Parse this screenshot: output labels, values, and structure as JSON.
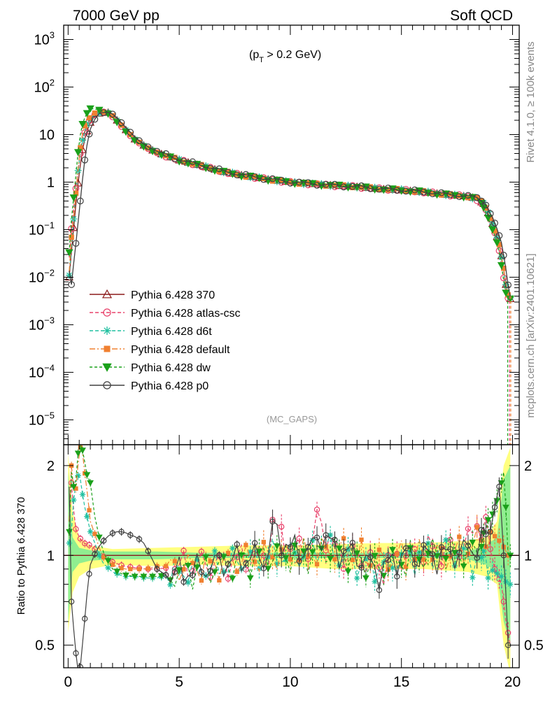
{
  "chart_data": {
    "type": "line",
    "title_left": "7000 GeV pp",
    "title_right": "Soft QCD",
    "cut_label_pre": "(p",
    "cut_label_sub": "T",
    "cut_label_post": " > 0.2 GeV)",
    "analysis_label": "(MC_GAPS)",
    "side_label_top": "Rivet 4.1.0, ≥ 100k events",
    "side_label_bottom": "mcplots.cern.ch [arXiv:2401.10621]",
    "ratio_ylabel": "Ratio to Pythia 6.428 370",
    "xlim": [
      -0.2,
      20.3
    ],
    "ylim_main": [
      3e-06,
      2000
    ],
    "ylim_ratio": [
      0.42,
      2.35
    ],
    "yscale_main": "log",
    "yscale_ratio": "log",
    "x_ticks": [
      "0",
      "5",
      "10",
      "15",
      "20"
    ],
    "x_tick_values": [
      0,
      5,
      10,
      15,
      20
    ],
    "main_ticks": [
      {
        "base": "10",
        "exp": "3",
        "value": 1000
      },
      {
        "base": "10",
        "exp": "2",
        "value": 100
      },
      {
        "base": "10",
        "exp": "",
        "value": 10
      },
      {
        "base": "1",
        "exp": "",
        "value": 1
      },
      {
        "base": "10",
        "exp": "−1",
        "value": 0.1
      },
      {
        "base": "10",
        "exp": "−2",
        "value": 0.01
      },
      {
        "base": "10",
        "exp": "−3",
        "value": 0.001
      },
      {
        "base": "10",
        "exp": "−4",
        "value": 0.0001
      },
      {
        "base": "10",
        "exp": "−5",
        "value": 1e-05
      }
    ],
    "ratio_ticks": [
      {
        "label": "2",
        "value": 2
      },
      {
        "label": "1",
        "value": 1
      },
      {
        "label": "0.5",
        "value": 0.5
      }
    ],
    "shape": {
      "x": [
        0.0,
        0.05,
        0.1,
        0.2,
        0.3,
        0.4,
        0.5,
        0.6,
        0.7,
        0.8,
        0.9,
        1.0,
        1.2,
        1.4,
        1.6,
        1.8,
        2.0,
        2.2,
        2.5,
        3.0,
        3.5,
        4.0,
        5.0,
        6.0,
        7.0,
        8.0,
        9.0,
        10.0,
        11.0,
        12.0,
        13.0,
        14.0,
        15.0,
        16.0,
        17.0,
        18.0,
        18.4,
        18.7,
        19.0,
        19.2,
        19.4,
        19.5,
        19.6,
        19.7,
        19.8,
        19.9,
        20.0
      ],
      "y": [
        0.008,
        0.01,
        0.02,
        0.06,
        0.2,
        0.6,
        1.5,
        3.5,
        6.5,
        10,
        14,
        18,
        24,
        28,
        30,
        29,
        25,
        20,
        14,
        8,
        5.5,
        4.2,
        2.9,
        2.2,
        1.65,
        1.35,
        1.15,
        1.0,
        0.92,
        0.85,
        0.8,
        0.72,
        0.68,
        0.62,
        0.55,
        0.5,
        0.45,
        0.35,
        0.18,
        0.1,
        0.05,
        0.028,
        0.015,
        0.007,
        0.004,
        0.0035,
        0.0035
      ]
    },
    "series": [
      {
        "name": "Pythia 6.428 370",
        "color": "#8b1a1a",
        "dash": "",
        "marker": "triangle-open",
        "shift": 0.0,
        "amp": 1.0,
        "ratio": {
          "x": [
            0.0,
            20.0
          ],
          "y": [
            1.0,
            1.0
          ]
        }
      },
      {
        "name": "Pythia 6.428 atlas-csc",
        "color": "#e8406a",
        "dash": "5,3",
        "marker": "circle-open",
        "shift": -0.05,
        "amp": 1.0,
        "ratio": {
          "x": [
            0.05,
            0.15,
            0.3,
            0.5,
            0.7,
            1.0,
            1.5,
            2.0,
            2.5,
            3.0,
            3.5,
            4.0,
            5.0,
            6.0,
            7.0,
            8.0,
            9.0,
            9.1,
            10.0,
            11.0,
            11.2,
            12.0,
            13.0,
            14.0,
            15.0,
            16.0,
            17.0,
            18.0,
            18.4,
            18.8,
            19.2,
            19.5,
            19.7,
            19.9
          ],
          "y": [
            1.3,
            1.75,
            1.25,
            1.15,
            1.1,
            1.08,
            1.0,
            0.95,
            0.92,
            0.91,
            0.9,
            0.9,
            0.92,
            0.93,
            0.95,
            0.98,
            1.0,
            1.3,
            1.05,
            1.05,
            1.35,
            1.05,
            1.0,
            0.9,
            1.0,
            1.05,
            1.05,
            1.1,
            1.3,
            1.2,
            0.9,
            0.8,
            0.6,
            0.5
          ]
        }
      },
      {
        "name": "Pythia 6.428 d6t",
        "color": "#20c0a0",
        "dash": "5,3",
        "marker": "star",
        "shift": 0.0,
        "amp": 1.0,
        "ratio": {
          "x": [
            0.05,
            0.15,
            0.3,
            0.5,
            0.7,
            1.0,
            1.5,
            2.0,
            2.5,
            3.0,
            3.5,
            4.0,
            5.0,
            6.0,
            7.0,
            8.0,
            9.0,
            10.0,
            11.0,
            11.5,
            12.0,
            13.0,
            14.0,
            15.0,
            16.0,
            17.0,
            18.0,
            18.5,
            19.0,
            19.5,
            19.8
          ],
          "y": [
            1.1,
            1.2,
            1.7,
            1.9,
            1.5,
            1.2,
            0.95,
            0.88,
            0.85,
            0.85,
            0.84,
            0.84,
            0.88,
            0.9,
            0.92,
            0.97,
            1.0,
            1.0,
            1.02,
            1.1,
            1.0,
            0.95,
            0.92,
            0.98,
            1.0,
            1.05,
            1.0,
            0.95,
            0.9,
            0.85,
            0.8
          ]
        }
      },
      {
        "name": "Pythia 6.428 default",
        "color": "#f08030",
        "dash": "8,3,2,3",
        "marker": "square",
        "shift": 0.0,
        "amp": 1.0,
        "ratio": {
          "x": [
            0.05,
            0.15,
            0.3,
            0.5,
            0.6,
            0.7,
            1.0,
            1.5,
            2.0,
            2.5,
            3.0,
            3.5,
            4.0,
            5.0,
            6.0,
            7.0,
            8.0,
            9.0,
            10.0,
            11.0,
            12.0,
            13.0,
            14.0,
            15.0,
            16.0,
            17.0,
            18.0,
            18.6,
            19.0,
            19.5,
            19.8
          ],
          "y": [
            1.3,
            2.0,
            1.5,
            2.2,
            2.4,
            2.0,
            1.3,
            1.0,
            0.93,
            0.9,
            0.9,
            0.9,
            0.92,
            0.92,
            0.92,
            0.95,
            0.97,
            1.0,
            1.0,
            1.02,
            1.05,
            1.0,
            0.95,
            1.0,
            1.0,
            1.0,
            1.05,
            1.15,
            1.2,
            1.1,
            1.0
          ]
        }
      },
      {
        "name": "Pythia 6.428 dw",
        "color": "#1aa01a",
        "dash": "4,3",
        "marker": "triangle-down",
        "shift": -0.08,
        "amp": 1.0,
        "ratio": {
          "x": [
            0.05,
            0.15,
            0.3,
            0.5,
            0.7,
            0.8,
            1.0,
            1.2,
            1.5,
            2.0,
            2.5,
            3.0,
            3.5,
            4.0,
            5.0,
            6.0,
            7.0,
            8.0,
            9.0,
            10.0,
            11.0,
            12.0,
            13.0,
            14.0,
            15.0,
            16.0,
            17.0,
            18.0,
            18.5,
            19.0,
            19.4,
            19.6,
            19.8
          ],
          "y": [
            1.2,
            1.9,
            1.6,
            2.4,
            2.2,
            1.9,
            1.75,
            1.35,
            1.05,
            0.9,
            0.86,
            0.85,
            0.85,
            0.85,
            0.87,
            0.9,
            0.92,
            0.97,
            1.0,
            1.0,
            1.0,
            1.05,
            0.98,
            0.9,
            0.95,
            1.0,
            1.05,
            1.0,
            1.1,
            1.3,
            1.6,
            1.9,
            1.0
          ]
        }
      },
      {
        "name": "Pythia 6.428 p0",
        "color": "#404040",
        "dash": "",
        "marker": "circle-open",
        "shift": 0.1,
        "amp": 1.0,
        "ratio": {
          "x": [
            0.05,
            0.15,
            0.3,
            0.5,
            0.7,
            1.0,
            1.3,
            1.6,
            1.9,
            2.2,
            2.5,
            2.8,
            3.1,
            3.4,
            3.7,
            4.0,
            4.5,
            5.0,
            6.0,
            7.0,
            8.0,
            9.0,
            9.1,
            10.0,
            11.0,
            11.3,
            12.0,
            13.0,
            14.0,
            15.0,
            16.0,
            17.0,
            18.0,
            18.6,
            19.0,
            19.4,
            19.6,
            19.8
          ],
          "y": [
            1.7,
            0.7,
            0.5,
            0.38,
            0.55,
            0.93,
            1.05,
            1.12,
            1.18,
            1.2,
            1.2,
            1.17,
            1.15,
            1.1,
            1.0,
            0.9,
            0.85,
            0.88,
            0.9,
            0.95,
            0.98,
            1.0,
            1.25,
            1.05,
            1.05,
            1.2,
            1.05,
            1.0,
            0.88,
            1.0,
            1.0,
            1.0,
            1.05,
            1.1,
            1.2,
            1.7,
            1.0,
            0.5
          ]
        }
      }
    ],
    "bands": {
      "outer_color": "#ffff80",
      "inner_color": "#90ee90",
      "x": [
        0.0,
        0.2,
        0.5,
        1.0,
        2.0,
        4.0,
        6.0,
        8.0,
        10.0,
        12.0,
        14.0,
        16.0,
        18.0,
        18.8,
        19.3,
        19.6,
        19.9
      ],
      "outer_lo": [
        0.55,
        0.75,
        0.85,
        0.9,
        0.93,
        0.92,
        0.93,
        0.92,
        0.92,
        0.9,
        0.9,
        0.9,
        0.88,
        0.85,
        0.8,
        0.5,
        0.4
      ],
      "outer_hi": [
        2.2,
        1.4,
        1.15,
        1.08,
        1.05,
        1.06,
        1.07,
        1.08,
        1.08,
        1.09,
        1.1,
        1.1,
        1.12,
        1.15,
        1.3,
        2.0,
        2.3
      ],
      "inner_lo": [
        0.6,
        0.88,
        0.94,
        0.96,
        0.97,
        0.97,
        0.98,
        0.98,
        0.98,
        0.98,
        0.98,
        0.98,
        0.97,
        0.93,
        0.88,
        0.6,
        0.5
      ],
      "inner_hi": [
        1.9,
        1.15,
        1.06,
        1.04,
        1.03,
        1.03,
        1.02,
        1.02,
        1.02,
        1.02,
        1.02,
        1.02,
        1.03,
        1.08,
        1.15,
        1.8,
        2.0
      ]
    }
  }
}
